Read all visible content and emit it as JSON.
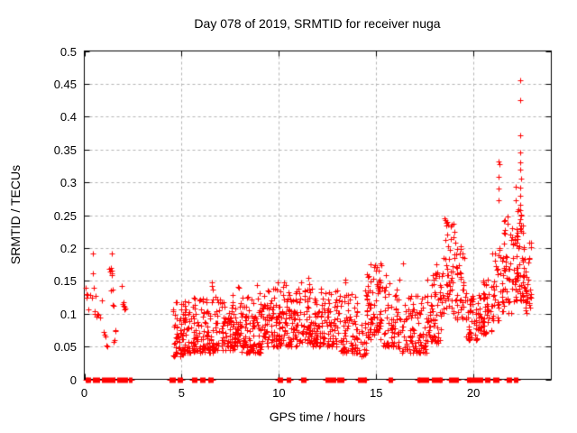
{
  "chart_data": {
    "type": "scatter",
    "title": "Day 078 of 2019, SRMTID for receiver nuga",
    "xlabel": "GPS time / hours",
    "ylabel": "SRMTID / TECUs",
    "xlim": [
      0,
      24
    ],
    "ylim": [
      0,
      0.5
    ],
    "xticks": [
      {
        "v": 0,
        "label": "0"
      },
      {
        "v": 5,
        "label": "5"
      },
      {
        "v": 10,
        "label": "10"
      },
      {
        "v": 15,
        "label": "15"
      },
      {
        "v": 20,
        "label": "20"
      }
    ],
    "yticks": [
      {
        "v": 0,
        "label": "0"
      },
      {
        "v": 0.05,
        "label": "0.05"
      },
      {
        "v": 0.1,
        "label": "0.1"
      },
      {
        "v": 0.15,
        "label": "0.15"
      },
      {
        "v": 0.2,
        "label": "0.2"
      },
      {
        "v": 0.25,
        "label": "0.25"
      },
      {
        "v": 0.3,
        "label": "0.3"
      },
      {
        "v": 0.35,
        "label": "0.35"
      },
      {
        "v": 0.4,
        "label": "0.4"
      },
      {
        "v": 0.45,
        "label": "0.45"
      },
      {
        "v": 0.5,
        "label": "0.5"
      }
    ],
    "grid": true,
    "legend": null,
    "marker": {
      "shape": "plus",
      "size": 7,
      "color": "#ff0000"
    },
    "grid_color": "#b4b4b4",
    "axis_color": "#000000",
    "text_color": "#000000",
    "background_color": "#ffffff",
    "seed": 20190078,
    "points": [
      [
        0.08,
        0.14
      ],
      [
        0.1,
        0.125
      ],
      [
        0.12,
        0.13
      ],
      [
        0.18,
        0.128
      ],
      [
        0.22,
        0.106
      ],
      [
        0.3,
        0.128
      ],
      [
        0.4,
        0.125
      ],
      [
        0.46,
        0.191
      ],
      [
        0.46,
        0.161
      ],
      [
        0.5,
        0.139
      ],
      [
        0.52,
        0.1
      ],
      [
        0.55,
        0.104
      ],
      [
        0.6,
        0.127
      ],
      [
        0.62,
        0.095
      ],
      [
        0.68,
        0.1
      ],
      [
        0.72,
        0.098
      ],
      [
        0.8,
        0.094
      ],
      [
        0.9,
        0.12
      ],
      [
        1.0,
        0.072
      ],
      [
        1.05,
        0.068
      ],
      [
        1.1,
        0.065
      ],
      [
        1.15,
        0.052
      ],
      [
        1.2,
        0.05
      ],
      [
        1.28,
        0.168
      ],
      [
        1.32,
        0.164
      ],
      [
        1.36,
        0.135
      ],
      [
        1.38,
        0.17
      ],
      [
        1.4,
        0.162
      ],
      [
        1.4,
        0.165
      ],
      [
        1.41,
        0.158
      ],
      [
        1.43,
        0.191
      ],
      [
        1.45,
        0.137
      ],
      [
        1.48,
        0.114
      ],
      [
        1.5,
        0.057
      ],
      [
        1.52,
        0.112
      ],
      [
        1.56,
        0.06
      ],
      [
        1.6,
        0.075
      ],
      [
        1.62,
        0.073
      ],
      [
        1.93,
        0.142
      ],
      [
        1.97,
        0.115
      ],
      [
        2.0,
        0.112
      ],
      [
        2.02,
        0.118
      ],
      [
        2.05,
        0.106
      ],
      [
        2.08,
        0.11
      ],
      [
        2.1,
        0.108
      ],
      [
        6.55,
        0.148
      ],
      [
        6.56,
        0.142
      ],
      [
        6.58,
        0.137
      ],
      [
        7.9,
        0.141
      ],
      [
        7.95,
        0.139
      ],
      [
        8.85,
        0.144
      ],
      [
        9.0,
        0.131
      ],
      [
        9.95,
        0.148
      ],
      [
        10.2,
        0.141
      ],
      [
        10.25,
        0.148
      ],
      [
        11.15,
        0.148
      ],
      [
        11.5,
        0.154
      ],
      [
        12.15,
        0.138
      ],
      [
        12.18,
        0.132
      ],
      [
        13.4,
        0.152
      ],
      [
        13.42,
        0.148
      ],
      [
        14.45,
        0.135
      ],
      [
        14.47,
        0.128
      ],
      [
        14.73,
        0.175
      ],
      [
        14.88,
        0.171
      ],
      [
        15.0,
        0.166
      ],
      [
        15.5,
        0.158
      ],
      [
        16.4,
        0.176
      ],
      [
        18.1,
        0.175
      ],
      [
        18.15,
        0.163
      ],
      [
        18.5,
        0.245
      ],
      [
        18.55,
        0.243
      ],
      [
        21.3,
        0.332
      ],
      [
        21.32,
        0.327
      ],
      [
        21.3,
        0.308
      ],
      [
        21.28,
        0.291
      ],
      [
        21.31,
        0.272
      ],
      [
        21.62,
        0.227
      ],
      [
        22.4,
        0.455
      ],
      [
        22.42,
        0.425
      ],
      [
        22.4,
        0.372
      ],
      [
        22.38,
        0.345
      ],
      [
        22.42,
        0.331
      ],
      [
        22.4,
        0.319
      ],
      [
        22.43,
        0.306
      ],
      [
        22.41,
        0.292
      ],
      [
        22.39,
        0.279
      ],
      [
        22.4,
        0.266
      ],
      [
        22.42,
        0.257
      ],
      [
        22.44,
        0.25
      ],
      [
        22.4,
        0.244
      ],
      [
        22.37,
        0.239
      ],
      [
        22.43,
        0.234
      ],
      [
        22.39,
        0.23
      ]
    ],
    "dense_clusters": [
      {
        "t0": 4.55,
        "t1": 5.2,
        "n": 70,
        "vmin": 0.035,
        "vmax": 0.12,
        "exp": 1.6
      },
      {
        "t0": 5.2,
        "t1": 6.7,
        "n": 130,
        "vmin": 0.04,
        "vmax": 0.125,
        "exp": 1.6
      },
      {
        "t0": 6.7,
        "t1": 8.0,
        "n": 120,
        "vmin": 0.045,
        "vmax": 0.13,
        "exp": 1.6
      },
      {
        "t0": 8.0,
        "t1": 9.2,
        "n": 110,
        "vmin": 0.04,
        "vmax": 0.128,
        "exp": 1.6
      },
      {
        "t0": 9.2,
        "t1": 10.2,
        "n": 90,
        "vmin": 0.05,
        "vmax": 0.138,
        "exp": 1.6
      },
      {
        "t0": 10.2,
        "t1": 11.0,
        "n": 70,
        "vmin": 0.05,
        "vmax": 0.145,
        "exp": 1.6
      },
      {
        "t0": 11.0,
        "t1": 11.7,
        "n": 60,
        "vmin": 0.055,
        "vmax": 0.15,
        "exp": 1.6
      },
      {
        "t0": 11.7,
        "t1": 12.3,
        "n": 50,
        "vmin": 0.05,
        "vmax": 0.128,
        "exp": 1.6
      },
      {
        "t0": 12.3,
        "t1": 13.0,
        "n": 60,
        "vmin": 0.05,
        "vmax": 0.138,
        "exp": 1.6
      },
      {
        "t0": 13.0,
        "t1": 14.05,
        "n": 80,
        "vmin": 0.04,
        "vmax": 0.13,
        "exp": 1.6
      },
      {
        "t0": 14.05,
        "t1": 14.5,
        "n": 20,
        "vmin": 0.035,
        "vmax": 0.09,
        "exp": 1.5
      },
      {
        "t0": 14.5,
        "t1": 15.3,
        "n": 80,
        "vmin": 0.06,
        "vmax": 0.185,
        "exp": 1.4
      },
      {
        "t0": 15.3,
        "t1": 16.2,
        "n": 65,
        "vmin": 0.05,
        "vmax": 0.155,
        "exp": 1.5
      },
      {
        "t0": 16.2,
        "t1": 17.6,
        "n": 100,
        "vmin": 0.04,
        "vmax": 0.128,
        "exp": 1.6
      },
      {
        "t0": 17.6,
        "t1": 18.35,
        "n": 65,
        "vmin": 0.055,
        "vmax": 0.165,
        "exp": 1.5
      },
      {
        "t0": 18.35,
        "t1": 19.05,
        "n": 55,
        "vmin": 0.1,
        "vmax": 0.24,
        "exp": 1.3
      },
      {
        "t0": 19.05,
        "t1": 19.6,
        "n": 40,
        "vmin": 0.09,
        "vmax": 0.215,
        "exp": 1.4
      },
      {
        "t0": 19.6,
        "t1": 20.3,
        "n": 55,
        "vmin": 0.06,
        "vmax": 0.132,
        "exp": 1.5
      },
      {
        "t0": 20.3,
        "t1": 20.95,
        "n": 55,
        "vmin": 0.07,
        "vmax": 0.155,
        "exp": 1.5
      },
      {
        "t0": 20.95,
        "t1": 21.55,
        "n": 45,
        "vmin": 0.09,
        "vmax": 0.2,
        "exp": 1.4
      },
      {
        "t0": 21.55,
        "t1": 22.15,
        "n": 45,
        "vmin": 0.1,
        "vmax": 0.25,
        "exp": 1.4
      },
      {
        "t0": 22.15,
        "t1": 22.6,
        "n": 55,
        "vmin": 0.12,
        "vmax": 0.3,
        "exp": 1.4
      },
      {
        "t0": 22.6,
        "t1": 23.0,
        "n": 35,
        "vmin": 0.1,
        "vmax": 0.215,
        "exp": 1.4
      }
    ],
    "zero_runs": [
      [
        0.05,
        0.35
      ],
      [
        0.45,
        0.8
      ],
      [
        0.9,
        1.6
      ],
      [
        1.7,
        2.2
      ],
      [
        2.3,
        2.45
      ],
      [
        4.4,
        4.7
      ],
      [
        4.8,
        5.05
      ],
      [
        5.55,
        5.8
      ],
      [
        5.95,
        6.2
      ],
      [
        6.35,
        6.65
      ],
      [
        9.95,
        10.2
      ],
      [
        10.4,
        10.6
      ],
      [
        11.15,
        11.4
      ],
      [
        12.4,
        12.9
      ],
      [
        13.0,
        13.35
      ],
      [
        14.05,
        14.5
      ],
      [
        15.65,
        15.85
      ],
      [
        17.1,
        17.7
      ],
      [
        17.85,
        18.4
      ],
      [
        18.75,
        19.2
      ],
      [
        19.65,
        20.5
      ],
      [
        20.6,
        20.85
      ],
      [
        21.0,
        21.3
      ],
      [
        21.7,
        21.95
      ],
      [
        22.1,
        22.3
      ]
    ],
    "zero_step": 0.045
  }
}
